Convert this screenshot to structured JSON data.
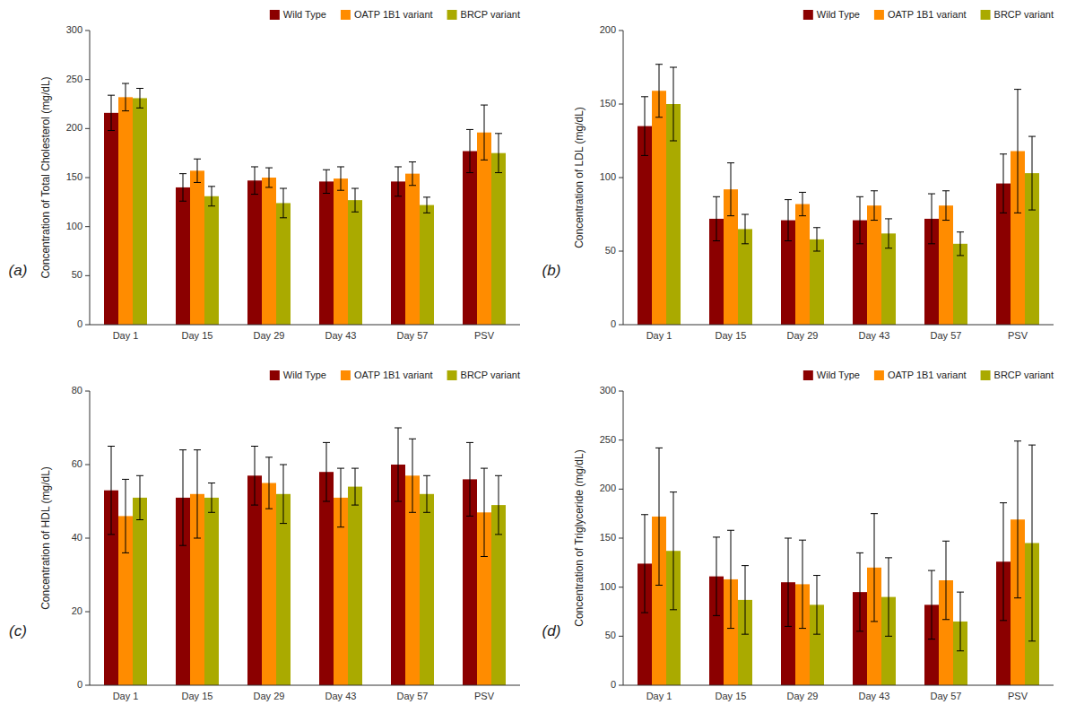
{
  "chart_data": [
    {
      "type": "bar",
      "categories": [
        "Day 1",
        "Day 15",
        "Day 29",
        "Day 43",
        "Day 57",
        "PSV"
      ],
      "series": [
        {
          "name": "Wild Type",
          "color": "#8B0000",
          "values": [
            216,
            140,
            147,
            146,
            146,
            177
          ],
          "errors": [
            18,
            14,
            14,
            12,
            15,
            22
          ]
        },
        {
          "name": "OATP 1B1 variant",
          "color": "#FF8C00",
          "values": [
            232,
            157,
            150,
            149,
            154,
            196
          ],
          "errors": [
            14,
            12,
            10,
            12,
            12,
            28
          ]
        },
        {
          "name": "BRCP variant",
          "color": "#AAAA00",
          "values": [
            231,
            131,
            124,
            127,
            122,
            175
          ],
          "errors": [
            10,
            10,
            15,
            12,
            8,
            20
          ]
        }
      ],
      "ylim": [
        0,
        300
      ],
      "yticks": [
        0,
        50,
        100,
        150,
        200,
        250,
        300
      ],
      "y_label": "Concentration of Total Cholesterol (mg/dL)",
      "annotations": [
        "(a)"
      ],
      "legend": "upper right",
      "grid": false
    },
    {
      "type": "bar",
      "categories": [
        "Day 1",
        "Day 15",
        "Day 29",
        "Day 43",
        "Day 57",
        "PSV"
      ],
      "series": [
        {
          "name": "Wild Type",
          "color": "#8B0000",
          "values": [
            135,
            72,
            71,
            71,
            72,
            96
          ],
          "errors": [
            20,
            15,
            14,
            16,
            17,
            20
          ]
        },
        {
          "name": "OATP 1B1 variant",
          "color": "#FF8C00",
          "values": [
            159,
            92,
            82,
            81,
            81,
            118
          ],
          "errors": [
            18,
            18,
            8,
            10,
            10,
            42
          ]
        },
        {
          "name": "BRCP variant",
          "color": "#AAAA00",
          "values": [
            150,
            65,
            58,
            62,
            55,
            103
          ],
          "errors": [
            25,
            10,
            8,
            10,
            8,
            25
          ]
        }
      ],
      "ylim": [
        0,
        200
      ],
      "yticks": [
        0,
        50,
        100,
        150,
        200
      ],
      "y_label": "Concentration of LDL (mg/dL)",
      "annotations": [
        "(b)"
      ],
      "legend": "upper right",
      "grid": false
    },
    {
      "type": "bar",
      "categories": [
        "Day 1",
        "Day 15",
        "Day 29",
        "Day 43",
        "Day 57",
        "PSV"
      ],
      "series": [
        {
          "name": "Wild Type",
          "color": "#8B0000",
          "values": [
            53,
            51,
            57,
            58,
            60,
            56
          ],
          "errors": [
            12,
            13,
            8,
            8,
            10,
            10
          ]
        },
        {
          "name": "OATP 1B1 variant",
          "color": "#FF8C00",
          "values": [
            46,
            52,
            55,
            51,
            57,
            47
          ],
          "errors": [
            10,
            12,
            7,
            8,
            10,
            12
          ]
        },
        {
          "name": "BRCP variant",
          "color": "#AAAA00",
          "values": [
            51,
            51,
            52,
            54,
            52,
            49
          ],
          "errors": [
            6,
            4,
            8,
            5,
            5,
            8
          ]
        }
      ],
      "ylim": [
        0,
        80
      ],
      "yticks": [
        0,
        20,
        40,
        60,
        80
      ],
      "y_label": "Concentration of HDL (mg/dL)",
      "annotations": [
        "(c)"
      ],
      "legend": "upper right",
      "grid": false
    },
    {
      "type": "bar",
      "categories": [
        "Day 1",
        "Day 15",
        "Day 29",
        "Day 43",
        "Day 57",
        "PSV"
      ],
      "series": [
        {
          "name": "Wild Type",
          "color": "#8B0000",
          "values": [
            124,
            111,
            105,
            95,
            82,
            126
          ],
          "errors": [
            50,
            40,
            45,
            40,
            35,
            60
          ]
        },
        {
          "name": "OATP 1B1 variant",
          "color": "#FF8C00",
          "values": [
            172,
            108,
            103,
            120,
            107,
            169
          ],
          "errors": [
            70,
            50,
            45,
            55,
            40,
            80
          ]
        },
        {
          "name": "BRCP variant",
          "color": "#AAAA00",
          "values": [
            137,
            87,
            82,
            90,
            65,
            145
          ],
          "errors": [
            60,
            35,
            30,
            40,
            30,
            100
          ]
        }
      ],
      "ylim": [
        0,
        300
      ],
      "yticks": [
        0,
        50,
        100,
        150,
        200,
        250,
        300
      ],
      "y_label": "Concentration of Triglyceride (mg/dL)",
      "annotations": [
        "(d)"
      ],
      "legend": "upper right",
      "grid": false
    }
  ]
}
